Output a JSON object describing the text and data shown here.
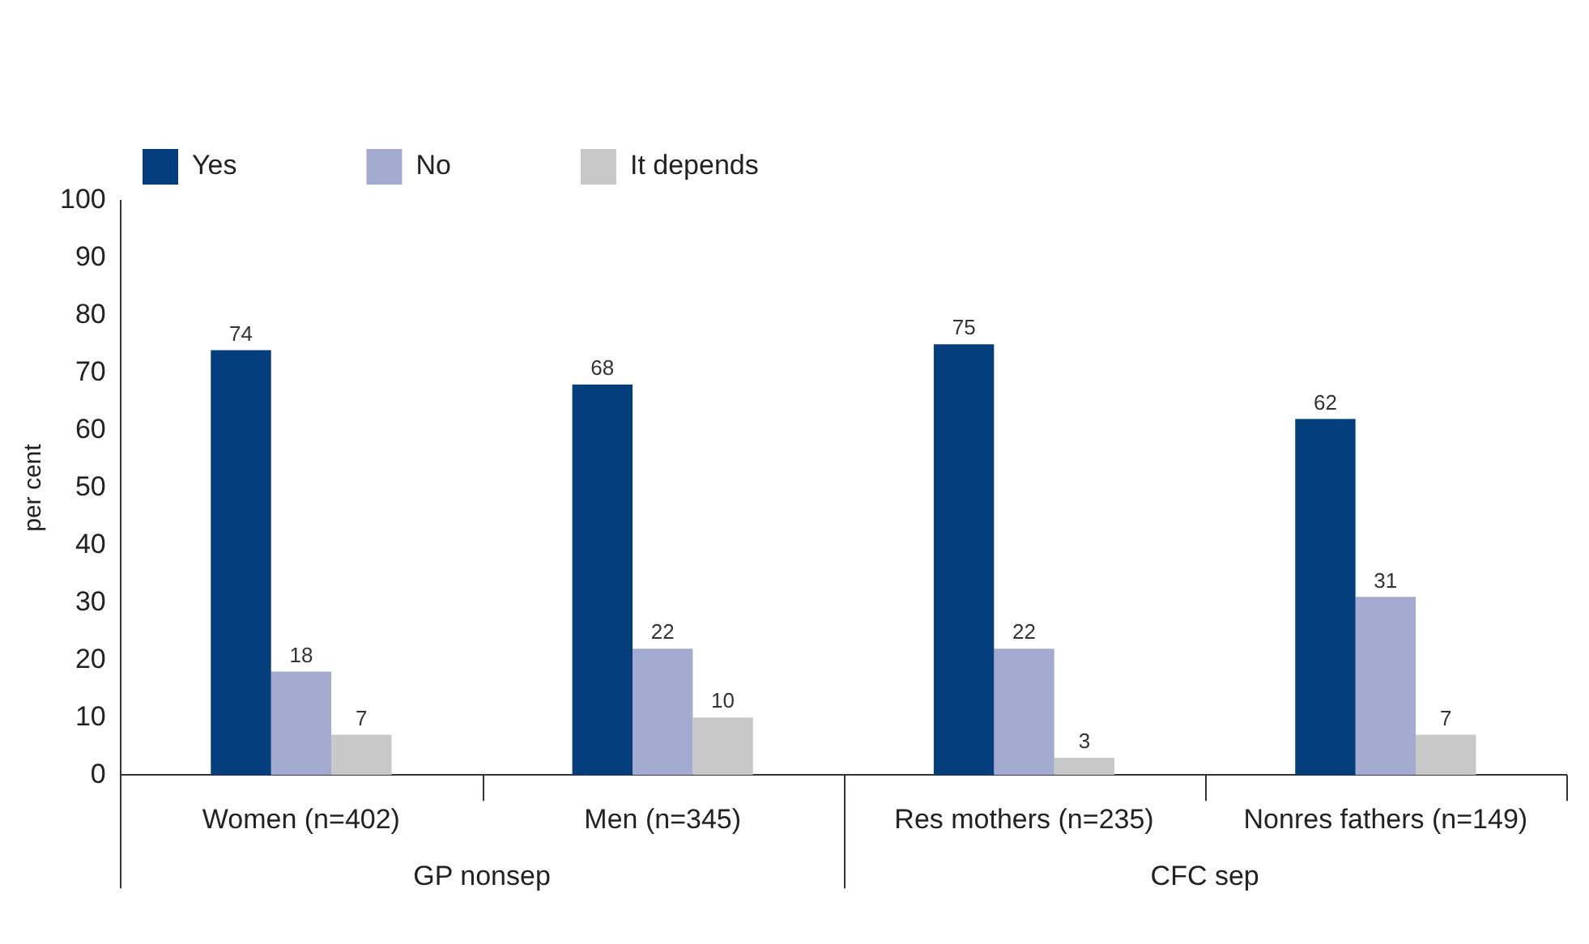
{
  "chart_data": {
    "type": "bar",
    "ylabel": "per cent",
    "categories": [
      "Women (n=402)",
      "Men (n=345)",
      "Res mothers (n=235)",
      "Nonres fathers (n=149)"
    ],
    "series": [
      {
        "name": "Yes",
        "color": "#053e7c",
        "values": [
          74,
          68,
          75,
          62
        ]
      },
      {
        "name": "No",
        "color": "#a3acd0",
        "values": [
          18,
          22,
          22,
          31
        ]
      },
      {
        "name": "It depends",
        "color": "#c8c8c8",
        "values": [
          7,
          10,
          3,
          7
        ]
      }
    ],
    "ylim": [
      0,
      100
    ],
    "yticks": [
      0,
      10,
      20,
      30,
      40,
      50,
      60,
      70,
      80,
      90,
      100
    ],
    "grid": false,
    "legend": "top",
    "data_labels": true,
    "annotations": [
      "GP nonsep",
      "CFC sep"
    ]
  }
}
